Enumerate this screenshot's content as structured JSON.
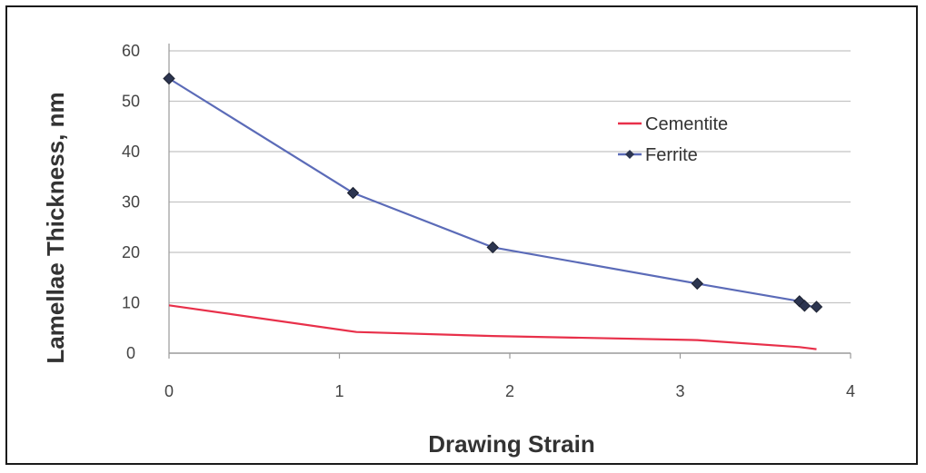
{
  "chart_data": {
    "type": "line",
    "title": "",
    "xlabel": "Drawing Strain",
    "ylabel": "Lamellae Thickness, nm",
    "xlim": [
      0,
      4
    ],
    "ylim": [
      0,
      60
    ],
    "xticks": [
      "0",
      "1",
      "2",
      "3",
      "4"
    ],
    "yticks": [
      "0",
      "10",
      "20",
      "30",
      "40",
      "50",
      "60"
    ],
    "grid": true,
    "legend_position": "top-right",
    "series": [
      {
        "name": "Cementite",
        "color": "#e8304a",
        "marker": "none",
        "x": [
          0,
          1.1,
          1.9,
          3.1,
          3.7,
          3.8
        ],
        "y": [
          9.5,
          4.2,
          3.4,
          2.6,
          1.2,
          0.8
        ]
      },
      {
        "name": "Ferrite",
        "color": "#5b6bb8",
        "marker": "diamond",
        "x": [
          0,
          1.08,
          1.9,
          3.1,
          3.7,
          3.73,
          3.8
        ],
        "y": [
          54.5,
          31.8,
          21.0,
          13.8,
          10.3,
          9.4,
          9.2
        ]
      }
    ]
  }
}
